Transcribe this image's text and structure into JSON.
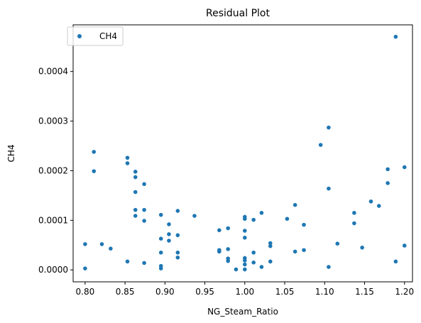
{
  "chart_data": {
    "type": "scatter",
    "title": "Residual Plot",
    "xlabel": "NG_Steam_Ratio",
    "ylabel": "CH4",
    "xlim": [
      0.785,
      1.21
    ],
    "ylim": [
      -2.4e-05,
      0.000494
    ],
    "xticks": [
      0.8,
      0.85,
      0.9,
      0.95,
      1.0,
      1.05,
      1.1,
      1.15,
      1.2
    ],
    "xtick_labels": [
      "0.80",
      "0.85",
      "0.90",
      "0.95",
      "1.00",
      "1.05",
      "1.10",
      "1.15",
      "1.20"
    ],
    "yticks": [
      0.0,
      0.0001,
      0.0002,
      0.0003,
      0.0004
    ],
    "ytick_labels": [
      "0.0000",
      "0.0001",
      "0.0002",
      "0.0003",
      "0.0004"
    ],
    "grid": false,
    "legend_position": "top-left",
    "series": [
      {
        "name": "CH4",
        "color": "#1f77b4",
        "points": [
          [
            0.8,
            5.2e-05
          ],
          [
            0.8,
            3e-06
          ],
          [
            0.811,
            0.000238
          ],
          [
            0.811,
            0.000199
          ],
          [
            0.821,
            5.2e-05
          ],
          [
            0.832,
            4.3e-05
          ],
          [
            0.853,
            0.000226
          ],
          [
            0.853,
            0.000215
          ],
          [
            0.853,
            1.7e-05
          ],
          [
            0.863,
            0.000198
          ],
          [
            0.863,
            0.000187
          ],
          [
            0.863,
            0.000157
          ],
          [
            0.863,
            0.000121
          ],
          [
            0.863,
            0.000109
          ],
          [
            0.874,
            0.000173
          ],
          [
            0.874,
            0.000121
          ],
          [
            0.874,
            9.9e-05
          ],
          [
            0.874,
            1.4e-05
          ],
          [
            0.895,
            0.000111
          ],
          [
            0.895,
            6.3e-05
          ],
          [
            0.895,
            3.5e-05
          ],
          [
            0.895,
            8e-06
          ],
          [
            0.895,
            3e-06
          ],
          [
            0.905,
            9.2e-05
          ],
          [
            0.905,
            7.2e-05
          ],
          [
            0.905,
            5.9e-05
          ],
          [
            0.916,
            0.000119
          ],
          [
            0.916,
            7e-05
          ],
          [
            0.916,
            3.5e-05
          ],
          [
            0.916,
            2.5e-05
          ],
          [
            0.937,
            0.000109
          ],
          [
            0.968,
            8e-05
          ],
          [
            0.968,
            4e-05
          ],
          [
            0.968,
            3.7e-05
          ],
          [
            0.979,
            8.4e-05
          ],
          [
            0.979,
            4.2e-05
          ],
          [
            0.979,
            2.3e-05
          ],
          [
            0.979,
            1.8e-05
          ],
          [
            0.989,
            1e-06
          ],
          [
            1.0,
            0.000107
          ],
          [
            1.0,
            0.000103
          ],
          [
            1.0,
            7.9e-05
          ],
          [
            1.0,
            6.5e-05
          ],
          [
            1.0,
            2.4e-05
          ],
          [
            1.0,
            1.9e-05
          ],
          [
            1.0,
            1.1e-05
          ],
          [
            1.0,
            1e-06
          ],
          [
            1.011,
            0.000101
          ],
          [
            1.011,
            3.5e-05
          ],
          [
            1.011,
            1.5e-05
          ],
          [
            1.021,
            0.000115
          ],
          [
            1.021,
            6e-06
          ],
          [
            1.032,
            5.4e-05
          ],
          [
            1.032,
            4.8e-05
          ],
          [
            1.032,
            1.7e-05
          ],
          [
            1.053,
            0.000103
          ],
          [
            1.063,
            0.000131
          ],
          [
            1.063,
            3.7e-05
          ],
          [
            1.074,
            9.1e-05
          ],
          [
            1.074,
            4e-05
          ],
          [
            1.095,
            0.000252
          ],
          [
            1.105,
            0.000287
          ],
          [
            1.105,
            0.000164
          ],
          [
            1.105,
            6e-06
          ],
          [
            1.116,
            5.3e-05
          ],
          [
            1.137,
            0.000115
          ],
          [
            1.137,
            9.4e-05
          ],
          [
            1.147,
            4.5e-05
          ],
          [
            1.158,
            0.000138
          ],
          [
            1.168,
            0.000129
          ],
          [
            1.179,
            0.000203
          ],
          [
            1.179,
            0.000175
          ],
          [
            1.189,
            0.00047
          ],
          [
            1.189,
            1.7e-05
          ],
          [
            1.2,
            0.000207
          ],
          [
            1.2,
            4.9e-05
          ]
        ]
      }
    ]
  }
}
